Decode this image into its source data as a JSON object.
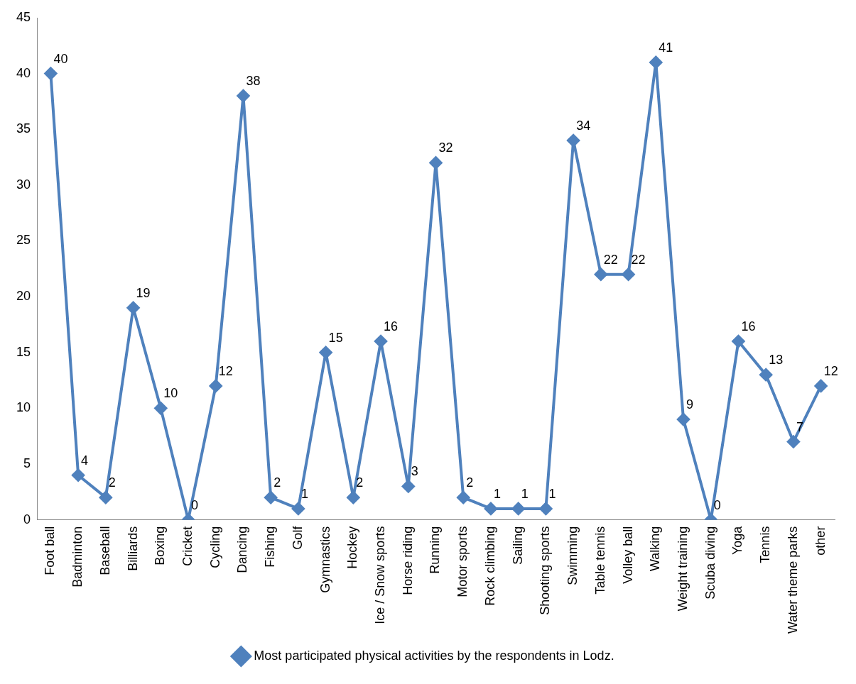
{
  "chart_data": {
    "type": "line",
    "categories": [
      "Foot ball",
      "Badminton",
      "Baseball",
      "Billiards",
      "Boxing",
      "Cricket",
      "Cycling",
      "Dancing",
      "Fishing",
      "Golf",
      "Gymnastics",
      "Hockey",
      "Ice / Snow sports",
      "Horse riding",
      "Running",
      "Motor sports",
      "Rock climbing",
      "Sailing",
      "Shooting sports",
      "Swimming",
      "Table tennis",
      "Volley ball",
      "Walking",
      "Weight training",
      "Scuba diving",
      "Yoga",
      "Tennis",
      "Water theme parks",
      "other"
    ],
    "series": [
      {
        "name": "Most participated physical activities by the respondents in Lodz.",
        "color": "#4f81bd",
        "values": [
          40,
          4,
          2,
          19,
          10,
          0,
          12,
          38,
          2,
          1,
          15,
          2,
          16,
          3,
          32,
          2,
          1,
          1,
          1,
          34,
          22,
          22,
          41,
          9,
          0,
          16,
          13,
          7,
          12
        ]
      }
    ],
    "ylim": [
      0,
      45
    ],
    "yticks": [
      0,
      5,
      10,
      15,
      20,
      25,
      30,
      35,
      40,
      45
    ],
    "grid": false,
    "legend": "bottom",
    "marker": "diamond",
    "line_style": "solid",
    "data_labels": true
  }
}
